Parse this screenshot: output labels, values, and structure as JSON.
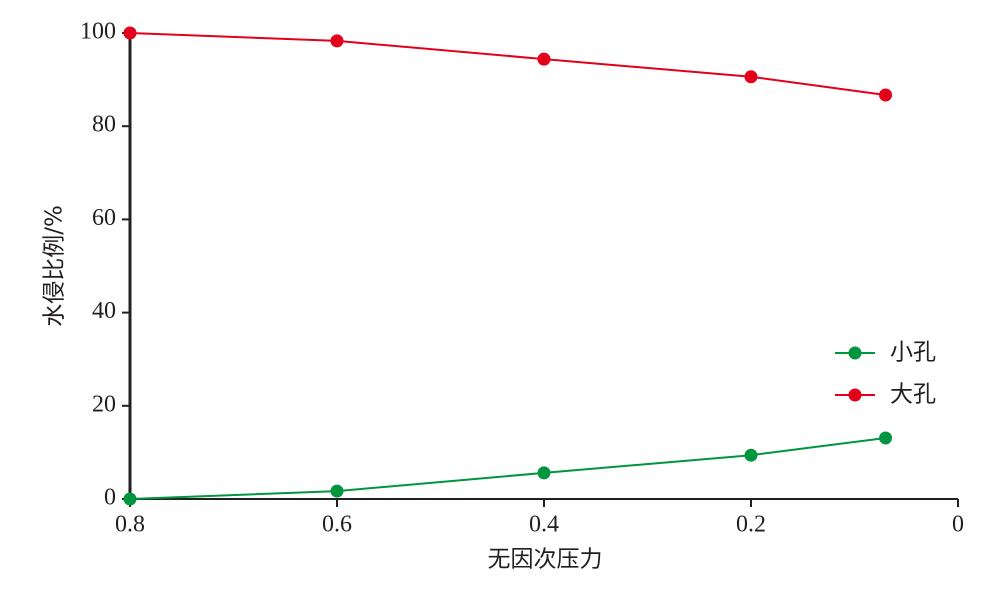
{
  "chart_data": {
    "type": "line",
    "x_label": "无因次压力",
    "y_label": "水侵比例/%",
    "x": [
      0.8,
      0.6,
      0.4,
      0.2,
      0.07
    ],
    "series": [
      {
        "name": "小孔",
        "color": "#00963f",
        "values": [
          0,
          1.7,
          5.6,
          9.4,
          13.1
        ]
      },
      {
        "name": "大孔",
        "color": "#e2001a",
        "values": [
          100,
          98.3,
          94.4,
          90.6,
          86.7
        ]
      }
    ],
    "xlim": [
      0.8,
      0
    ],
    "xticks": [
      0.8,
      0.6,
      0.4,
      0.2,
      0
    ],
    "ylim": [
      0,
      100
    ],
    "yticks": [
      0,
      20,
      40,
      60,
      80,
      100
    ],
    "legend": "right",
    "grid": false
  }
}
